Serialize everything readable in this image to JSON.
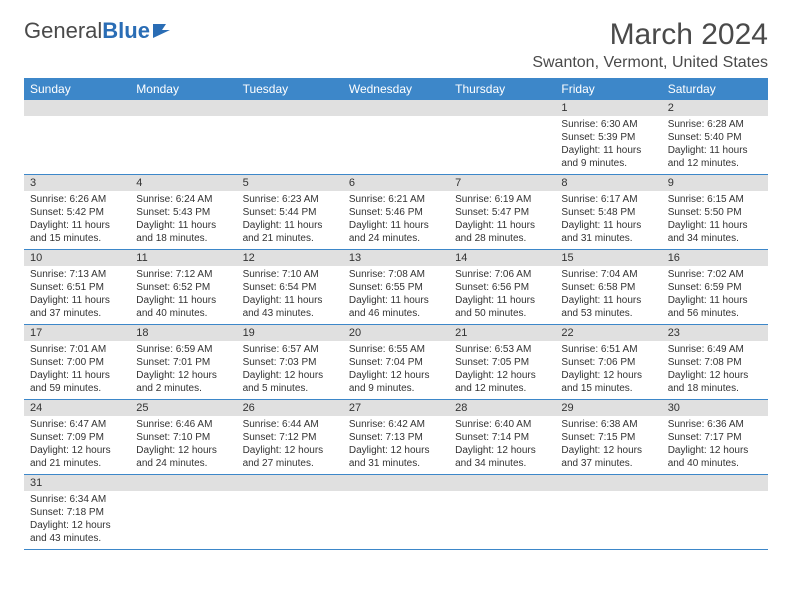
{
  "logo": {
    "text_gray": "General",
    "text_blue": "Blue"
  },
  "header": {
    "month_title": "March 2024",
    "location": "Swanton, Vermont, United States"
  },
  "colors": {
    "header_bg": "#3d87c9",
    "header_text": "#ffffff",
    "daynum_bg": "#e0e0e0",
    "cell_border": "#3d87c9",
    "logo_gray": "#4a4a4a",
    "logo_blue": "#2a6db5"
  },
  "weekdays": [
    "Sunday",
    "Monday",
    "Tuesday",
    "Wednesday",
    "Thursday",
    "Friday",
    "Saturday"
  ],
  "weeks": [
    [
      {
        "day": "",
        "sunrise": "",
        "sunset": "",
        "daylight": ""
      },
      {
        "day": "",
        "sunrise": "",
        "sunset": "",
        "daylight": ""
      },
      {
        "day": "",
        "sunrise": "",
        "sunset": "",
        "daylight": ""
      },
      {
        "day": "",
        "sunrise": "",
        "sunset": "",
        "daylight": ""
      },
      {
        "day": "",
        "sunrise": "",
        "sunset": "",
        "daylight": ""
      },
      {
        "day": "1",
        "sunrise": "Sunrise: 6:30 AM",
        "sunset": "Sunset: 5:39 PM",
        "daylight": "Daylight: 11 hours and 9 minutes."
      },
      {
        "day": "2",
        "sunrise": "Sunrise: 6:28 AM",
        "sunset": "Sunset: 5:40 PM",
        "daylight": "Daylight: 11 hours and 12 minutes."
      }
    ],
    [
      {
        "day": "3",
        "sunrise": "Sunrise: 6:26 AM",
        "sunset": "Sunset: 5:42 PM",
        "daylight": "Daylight: 11 hours and 15 minutes."
      },
      {
        "day": "4",
        "sunrise": "Sunrise: 6:24 AM",
        "sunset": "Sunset: 5:43 PM",
        "daylight": "Daylight: 11 hours and 18 minutes."
      },
      {
        "day": "5",
        "sunrise": "Sunrise: 6:23 AM",
        "sunset": "Sunset: 5:44 PM",
        "daylight": "Daylight: 11 hours and 21 minutes."
      },
      {
        "day": "6",
        "sunrise": "Sunrise: 6:21 AM",
        "sunset": "Sunset: 5:46 PM",
        "daylight": "Daylight: 11 hours and 24 minutes."
      },
      {
        "day": "7",
        "sunrise": "Sunrise: 6:19 AM",
        "sunset": "Sunset: 5:47 PM",
        "daylight": "Daylight: 11 hours and 28 minutes."
      },
      {
        "day": "8",
        "sunrise": "Sunrise: 6:17 AM",
        "sunset": "Sunset: 5:48 PM",
        "daylight": "Daylight: 11 hours and 31 minutes."
      },
      {
        "day": "9",
        "sunrise": "Sunrise: 6:15 AM",
        "sunset": "Sunset: 5:50 PM",
        "daylight": "Daylight: 11 hours and 34 minutes."
      }
    ],
    [
      {
        "day": "10",
        "sunrise": "Sunrise: 7:13 AM",
        "sunset": "Sunset: 6:51 PM",
        "daylight": "Daylight: 11 hours and 37 minutes."
      },
      {
        "day": "11",
        "sunrise": "Sunrise: 7:12 AM",
        "sunset": "Sunset: 6:52 PM",
        "daylight": "Daylight: 11 hours and 40 minutes."
      },
      {
        "day": "12",
        "sunrise": "Sunrise: 7:10 AM",
        "sunset": "Sunset: 6:54 PM",
        "daylight": "Daylight: 11 hours and 43 minutes."
      },
      {
        "day": "13",
        "sunrise": "Sunrise: 7:08 AM",
        "sunset": "Sunset: 6:55 PM",
        "daylight": "Daylight: 11 hours and 46 minutes."
      },
      {
        "day": "14",
        "sunrise": "Sunrise: 7:06 AM",
        "sunset": "Sunset: 6:56 PM",
        "daylight": "Daylight: 11 hours and 50 minutes."
      },
      {
        "day": "15",
        "sunrise": "Sunrise: 7:04 AM",
        "sunset": "Sunset: 6:58 PM",
        "daylight": "Daylight: 11 hours and 53 minutes."
      },
      {
        "day": "16",
        "sunrise": "Sunrise: 7:02 AM",
        "sunset": "Sunset: 6:59 PM",
        "daylight": "Daylight: 11 hours and 56 minutes."
      }
    ],
    [
      {
        "day": "17",
        "sunrise": "Sunrise: 7:01 AM",
        "sunset": "Sunset: 7:00 PM",
        "daylight": "Daylight: 11 hours and 59 minutes."
      },
      {
        "day": "18",
        "sunrise": "Sunrise: 6:59 AM",
        "sunset": "Sunset: 7:01 PM",
        "daylight": "Daylight: 12 hours and 2 minutes."
      },
      {
        "day": "19",
        "sunrise": "Sunrise: 6:57 AM",
        "sunset": "Sunset: 7:03 PM",
        "daylight": "Daylight: 12 hours and 5 minutes."
      },
      {
        "day": "20",
        "sunrise": "Sunrise: 6:55 AM",
        "sunset": "Sunset: 7:04 PM",
        "daylight": "Daylight: 12 hours and 9 minutes."
      },
      {
        "day": "21",
        "sunrise": "Sunrise: 6:53 AM",
        "sunset": "Sunset: 7:05 PM",
        "daylight": "Daylight: 12 hours and 12 minutes."
      },
      {
        "day": "22",
        "sunrise": "Sunrise: 6:51 AM",
        "sunset": "Sunset: 7:06 PM",
        "daylight": "Daylight: 12 hours and 15 minutes."
      },
      {
        "day": "23",
        "sunrise": "Sunrise: 6:49 AM",
        "sunset": "Sunset: 7:08 PM",
        "daylight": "Daylight: 12 hours and 18 minutes."
      }
    ],
    [
      {
        "day": "24",
        "sunrise": "Sunrise: 6:47 AM",
        "sunset": "Sunset: 7:09 PM",
        "daylight": "Daylight: 12 hours and 21 minutes."
      },
      {
        "day": "25",
        "sunrise": "Sunrise: 6:46 AM",
        "sunset": "Sunset: 7:10 PM",
        "daylight": "Daylight: 12 hours and 24 minutes."
      },
      {
        "day": "26",
        "sunrise": "Sunrise: 6:44 AM",
        "sunset": "Sunset: 7:12 PM",
        "daylight": "Daylight: 12 hours and 27 minutes."
      },
      {
        "day": "27",
        "sunrise": "Sunrise: 6:42 AM",
        "sunset": "Sunset: 7:13 PM",
        "daylight": "Daylight: 12 hours and 31 minutes."
      },
      {
        "day": "28",
        "sunrise": "Sunrise: 6:40 AM",
        "sunset": "Sunset: 7:14 PM",
        "daylight": "Daylight: 12 hours and 34 minutes."
      },
      {
        "day": "29",
        "sunrise": "Sunrise: 6:38 AM",
        "sunset": "Sunset: 7:15 PM",
        "daylight": "Daylight: 12 hours and 37 minutes."
      },
      {
        "day": "30",
        "sunrise": "Sunrise: 6:36 AM",
        "sunset": "Sunset: 7:17 PM",
        "daylight": "Daylight: 12 hours and 40 minutes."
      }
    ],
    [
      {
        "day": "31",
        "sunrise": "Sunrise: 6:34 AM",
        "sunset": "Sunset: 7:18 PM",
        "daylight": "Daylight: 12 hours and 43 minutes."
      },
      {
        "day": "",
        "sunrise": "",
        "sunset": "",
        "daylight": ""
      },
      {
        "day": "",
        "sunrise": "",
        "sunset": "",
        "daylight": ""
      },
      {
        "day": "",
        "sunrise": "",
        "sunset": "",
        "daylight": ""
      },
      {
        "day": "",
        "sunrise": "",
        "sunset": "",
        "daylight": ""
      },
      {
        "day": "",
        "sunrise": "",
        "sunset": "",
        "daylight": ""
      },
      {
        "day": "",
        "sunrise": "",
        "sunset": "",
        "daylight": ""
      }
    ]
  ]
}
